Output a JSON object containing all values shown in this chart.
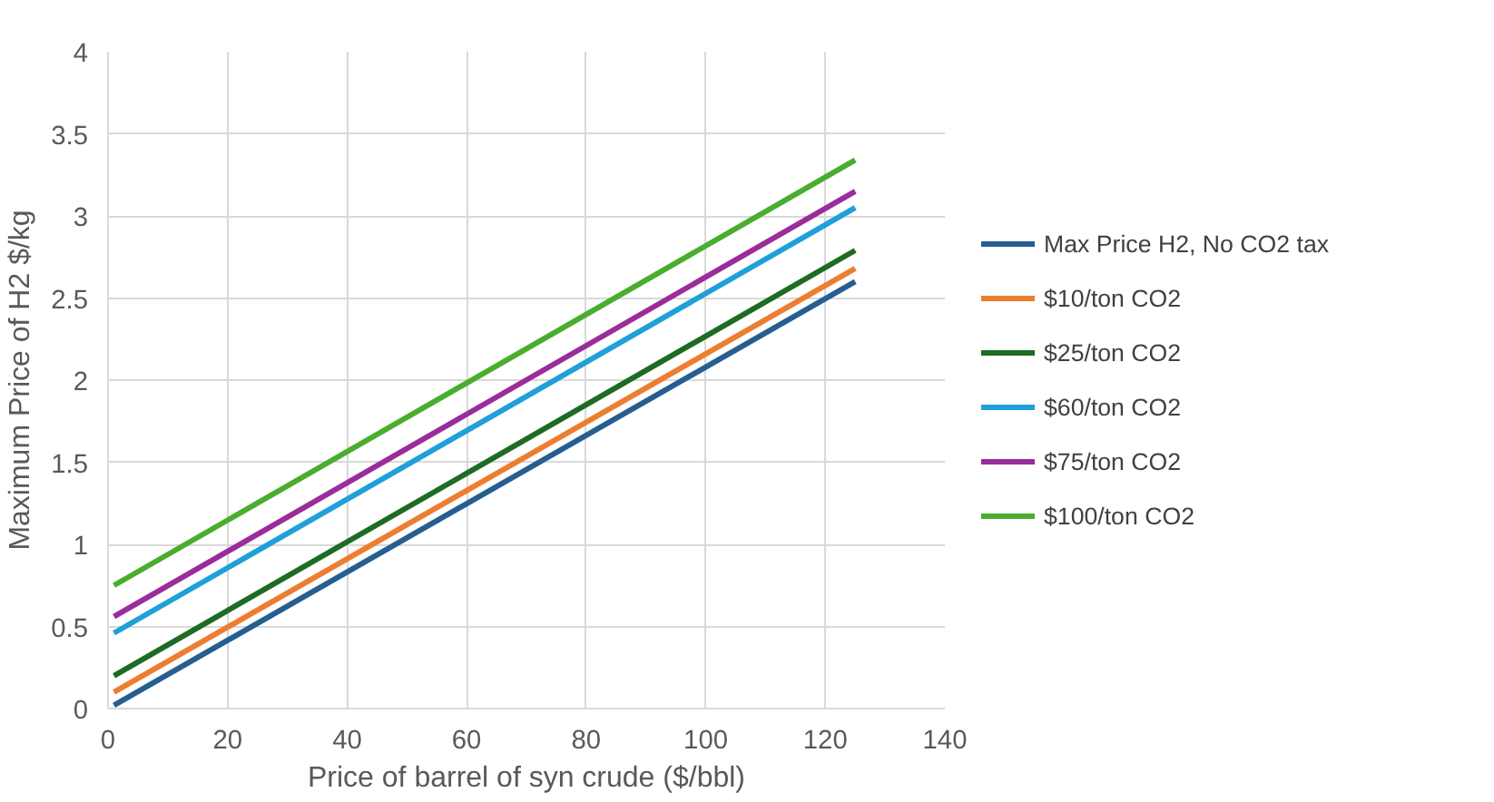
{
  "chart_data": {
    "type": "line",
    "xlabel": "Price of barrel of syn crude ($/bbl)",
    "ylabel": "Maximum Price of H2 $/kg",
    "x": [
      1,
      125
    ],
    "series": [
      {
        "name": "Max Price H2, No CO2 tax",
        "color": "#255e91",
        "values": [
          0.02,
          2.6
        ]
      },
      {
        "name": "$10/ton CO2",
        "color": "#ed7d31",
        "values": [
          0.1,
          2.68
        ]
      },
      {
        "name": "$25/ton CO2",
        "color": "#1e6b24",
        "values": [
          0.2,
          2.79
        ]
      },
      {
        "name": "$60/ton CO2",
        "color": "#1fa0d8",
        "values": [
          0.46,
          3.05
        ]
      },
      {
        "name": "$75/ton CO2",
        "color": "#9b2c9b",
        "values": [
          0.56,
          3.15
        ]
      },
      {
        "name": "$100/ton CO2",
        "color": "#4aad2e",
        "values": [
          0.75,
          3.34
        ]
      }
    ],
    "xlim": [
      0,
      140
    ],
    "xticks": [
      0,
      20,
      40,
      60,
      80,
      100,
      120,
      140
    ],
    "ylim": [
      0,
      4
    ],
    "yticks": [
      0,
      0.5,
      1,
      1.5,
      2,
      2.5,
      3,
      3.5,
      4
    ],
    "grid": true,
    "legend": "right",
    "marker": "none",
    "line_style": "solid"
  }
}
